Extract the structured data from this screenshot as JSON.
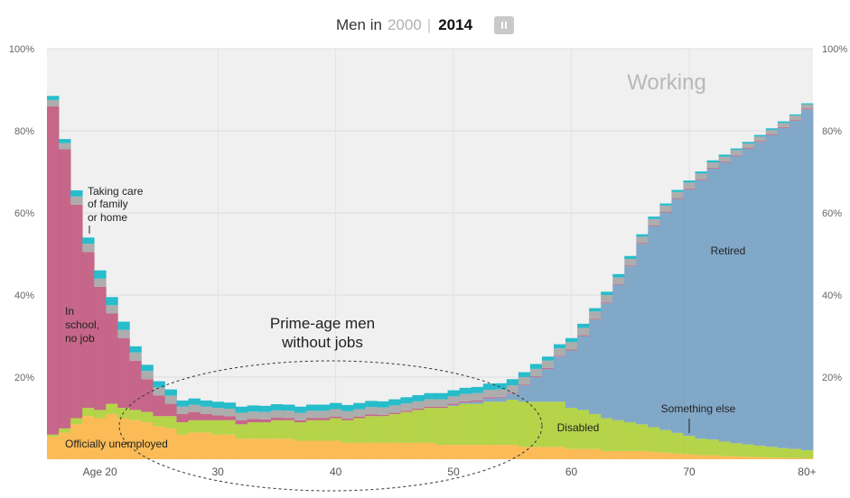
{
  "header": {
    "prefix": "Men in",
    "year_old": "2000",
    "separator": "|",
    "year_new": "2014",
    "pause_icon": "pause-icon"
  },
  "colors": {
    "background": "#f0f0f0",
    "unemployed": "#fcb74a",
    "disabled": "#b0d13c",
    "retired": "#78a2c4",
    "school": "#c25b80",
    "something_else": "#a7a7a7",
    "family": "#16b8c8"
  },
  "annotations": {
    "working": "Working",
    "retired": "Retired",
    "disabled": "Disabled",
    "officially_unemployed": "Officially unemployed",
    "in_school": [
      "In",
      "school,",
      "no job"
    ],
    "taking_care": [
      "Taking care",
      "of family",
      "or home"
    ],
    "something_else": "Something else",
    "prime_age": [
      "Prime-age men",
      "without jobs"
    ]
  },
  "chart_data": {
    "type": "area",
    "title": "Men in 2000 | 2014",
    "xlabel": "",
    "ylabel": "",
    "x_tick_labels": [
      "Age 20",
      "30",
      "40",
      "50",
      "60",
      "70",
      "80+"
    ],
    "y_tick_labels": [
      "20%",
      "40%",
      "60%",
      "80%",
      "100%"
    ],
    "ylim": [
      0,
      100
    ],
    "stacked": true,
    "grid": true,
    "x": [
      16,
      17,
      18,
      19,
      20,
      21,
      22,
      23,
      24,
      25,
      26,
      27,
      28,
      29,
      30,
      31,
      32,
      33,
      34,
      35,
      36,
      37,
      38,
      39,
      40,
      41,
      42,
      43,
      44,
      45,
      46,
      47,
      48,
      49,
      50,
      51,
      52,
      53,
      54,
      55,
      56,
      57,
      58,
      59,
      60,
      61,
      62,
      63,
      64,
      65,
      66,
      67,
      68,
      69,
      70,
      71,
      72,
      73,
      74,
      75,
      76,
      77,
      78,
      79,
      80
    ],
    "series": [
      {
        "name": "Officially unemployed",
        "color_key": "unemployed",
        "values": [
          5.5,
          6.5,
          8.5,
          10.5,
          10,
          11,
          10,
          9.5,
          9,
          8,
          7.5,
          6,
          6.5,
          6.5,
          6,
          6,
          5,
          5,
          5,
          5,
          5,
          4.5,
          4.5,
          4.5,
          4.5,
          4,
          4,
          4,
          4,
          4,
          4,
          4,
          4,
          3.5,
          3.5,
          3.5,
          3.5,
          3.5,
          3.5,
          3.5,
          3,
          3,
          3,
          3,
          2.5,
          2.5,
          2.5,
          2,
          2,
          2,
          2,
          1.8,
          1.6,
          1.4,
          1.2,
          1,
          1,
          0.8,
          0.7,
          0.6,
          0.5,
          0.4,
          0.3,
          0.3,
          0.2
        ]
      },
      {
        "name": "Disabled",
        "color_key": "disabled",
        "values": [
          0.5,
          1,
          1.5,
          2,
          2,
          2.5,
          2.5,
          2.5,
          2.5,
          2.5,
          3,
          3,
          3,
          3,
          3.5,
          3.5,
          3.5,
          4,
          4,
          4.5,
          4.5,
          4.5,
          5,
          5,
          5.5,
          5.5,
          6,
          6.5,
          6.5,
          7,
          7.5,
          8,
          8.5,
          9,
          9.5,
          10,
          10,
          10.5,
          10.5,
          11,
          11,
          11,
          11,
          11,
          10,
          9.5,
          8.5,
          8,
          7.5,
          7,
          6.5,
          6,
          5.5,
          5,
          4.5,
          4,
          3.8,
          3.5,
          3.2,
          3,
          2.8,
          2.6,
          2.4,
          2.2,
          2
        ]
      },
      {
        "name": "Retired",
        "color_key": "retired",
        "values": [
          0,
          0,
          0,
          0,
          0,
          0,
          0,
          0,
          0,
          0,
          0,
          0,
          0,
          0,
          0,
          0,
          0,
          0,
          0,
          0,
          0,
          0,
          0,
          0,
          0,
          0,
          0,
          0,
          0,
          0,
          0,
          0,
          0,
          0,
          0.2,
          0.3,
          0.5,
          0.8,
          1,
          1.5,
          4,
          6,
          8,
          11,
          14,
          18,
          23,
          28,
          33,
          38,
          44,
          49,
          53,
          57,
          60,
          63,
          66,
          68,
          70,
          72,
          74,
          76,
          78,
          80,
          83
        ]
      },
      {
        "name": "In school, no job",
        "color_key": "school",
        "values": [
          80,
          68,
          52,
          38,
          30,
          22,
          17,
          12,
          8,
          5,
          3,
          2,
          2,
          1.5,
          1.2,
          1,
          1,
          0.8,
          0.7,
          0.6,
          0.5,
          0.5,
          0.5,
          0.5,
          0.4,
          0.4,
          0.4,
          0.4,
          0.3,
          0.3,
          0.3,
          0.3,
          0.3,
          0.3,
          0.3,
          0.3,
          0.3,
          0.3,
          0.2,
          0.2,
          0.2,
          0.2,
          0.2,
          0.2,
          0.2,
          0.2,
          0.2,
          0.2,
          0.2,
          0.2,
          0.2,
          0.2,
          0.2,
          0.2,
          0.2,
          0.2,
          0.2,
          0.2,
          0.2,
          0.2,
          0.2,
          0.2,
          0.2,
          0.2,
          0.2
        ]
      },
      {
        "name": "Something else",
        "color_key": "something_else",
        "values": [
          1.5,
          1.5,
          2,
          2,
          2,
          2,
          2,
          2,
          2,
          2,
          2,
          1.8,
          1.8,
          1.8,
          1.8,
          1.8,
          1.8,
          1.8,
          1.8,
          1.8,
          1.8,
          1.8,
          1.8,
          1.8,
          1.8,
          1.8,
          1.8,
          1.8,
          1.8,
          1.8,
          1.8,
          1.8,
          1.8,
          1.8,
          1.8,
          1.8,
          1.8,
          1.8,
          1.8,
          1.8,
          1.8,
          1.8,
          1.8,
          1.8,
          1.8,
          1.8,
          1.8,
          1.8,
          1.6,
          1.6,
          1.5,
          1.5,
          1.5,
          1.5,
          1.5,
          1.4,
          1.3,
          1.2,
          1.2,
          1.1,
          1.1,
          1,
          1,
          1,
          1
        ]
      },
      {
        "name": "Taking care of family or home",
        "color_key": "family",
        "values": [
          1,
          1,
          1.5,
          1.5,
          2,
          2,
          2,
          1.5,
          1.5,
          1.5,
          1.5,
          1.5,
          1.5,
          1.5,
          1.5,
          1.5,
          1.5,
          1.5,
          1.5,
          1.5,
          1.5,
          1.5,
          1.5,
          1.5,
          1.5,
          1.5,
          1.5,
          1.5,
          1.5,
          1.5,
          1.5,
          1.5,
          1.5,
          1.5,
          1.5,
          1.5,
          1.5,
          1.5,
          1.5,
          1.5,
          1.2,
          1.2,
          1,
          1,
          1,
          1,
          0.8,
          0.8,
          0.8,
          0.7,
          0.6,
          0.6,
          0.5,
          0.5,
          0.5,
          0.5,
          0.5,
          0.5,
          0.4,
          0.4,
          0.4,
          0.4,
          0.4,
          0.3,
          0.3
        ]
      }
    ],
    "legend": "inline-labels"
  }
}
